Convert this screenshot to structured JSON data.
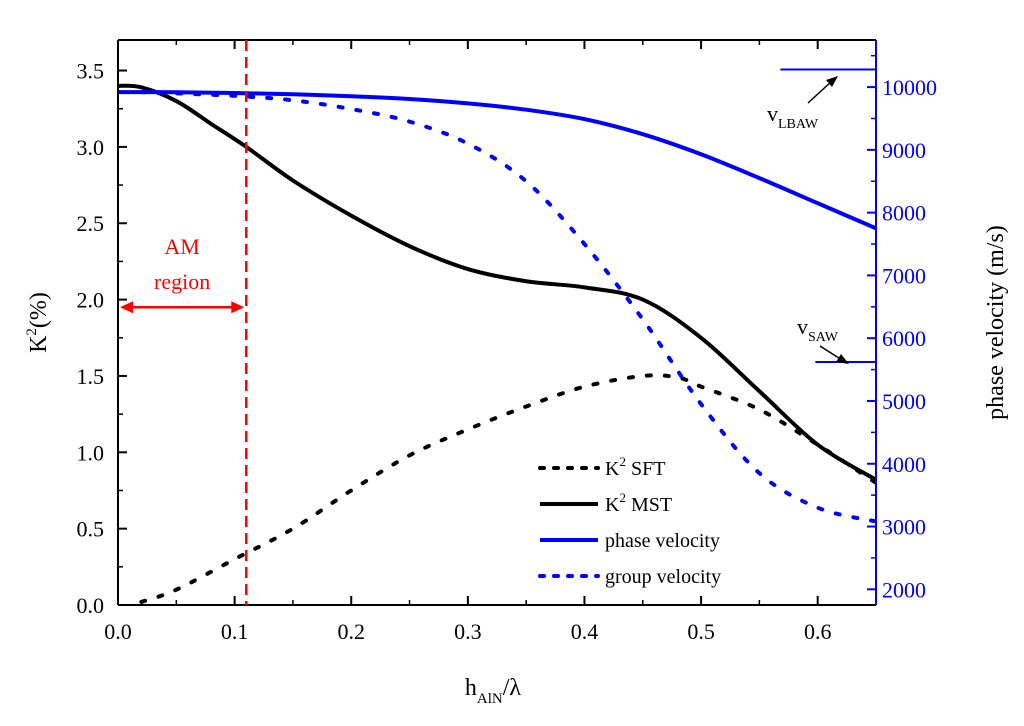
{
  "chart_data": {
    "type": "line",
    "x_axis": {
      "label_main": "h",
      "label_sub": "AlN",
      "label_tail": "/λ",
      "range": [
        0.0,
        0.65
      ],
      "ticks": [
        0.0,
        0.1,
        0.2,
        0.3,
        0.4,
        0.5,
        0.6
      ],
      "tick_labels": [
        "0.0",
        "0.1",
        "0.2",
        "0.3",
        "0.4",
        "0.5",
        "0.6"
      ]
    },
    "y_left": {
      "label_main": "K",
      "label_sup": "2",
      "label_tail": "(%)",
      "range": [
        0.0,
        3.7
      ],
      "ticks": [
        0.0,
        0.5,
        1.0,
        1.5,
        2.0,
        2.5,
        3.0,
        3.5
      ],
      "tick_labels": [
        "0.0",
        "0.5",
        "1.0",
        "1.5",
        "2.0",
        "2.5",
        "3.0",
        "3.5"
      ],
      "color": "#000000"
    },
    "y_right": {
      "label": "phase velocity (m/s)",
      "range": [
        1750,
        10750
      ],
      "ticks": [
        2000,
        3000,
        4000,
        5000,
        6000,
        7000,
        8000,
        9000,
        10000
      ],
      "tick_labels": [
        "2000",
        "3000",
        "4000",
        "5000",
        "6000",
        "7000",
        "8000",
        "9000",
        "10000"
      ],
      "color": "#0000ff"
    },
    "series": [
      {
        "name": "K2 SFT",
        "legend_main": "K",
        "legend_sup": "2",
        "legend_tail": " SFT",
        "axis": "left",
        "color": "#000000",
        "style": "dotted",
        "x": [
          0.02,
          0.05,
          0.1,
          0.15,
          0.2,
          0.25,
          0.3,
          0.35,
          0.4,
          0.45,
          0.48,
          0.5,
          0.55,
          0.6,
          0.65
        ],
        "y": [
          0.02,
          0.1,
          0.3,
          0.5,
          0.75,
          0.98,
          1.15,
          1.3,
          1.43,
          1.5,
          1.49,
          1.43,
          1.28,
          1.05,
          0.8
        ]
      },
      {
        "name": "K2 MST",
        "legend_main": "K",
        "legend_sup": "2",
        "legend_tail": " MST",
        "axis": "left",
        "color": "#000000",
        "style": "solid",
        "x": [
          0.0,
          0.02,
          0.05,
          0.08,
          0.11,
          0.15,
          0.2,
          0.25,
          0.3,
          0.35,
          0.4,
          0.45,
          0.5,
          0.55,
          0.6,
          0.65
        ],
        "y": [
          3.4,
          3.39,
          3.3,
          3.15,
          3.0,
          2.78,
          2.55,
          2.35,
          2.2,
          2.12,
          2.08,
          2.0,
          1.75,
          1.4,
          1.05,
          0.82
        ]
      },
      {
        "name": "phase velocity",
        "legend_main": "phase velocity",
        "axis": "right",
        "color": "#0000ff",
        "style": "solid",
        "x": [
          0.0,
          0.05,
          0.1,
          0.15,
          0.2,
          0.25,
          0.3,
          0.35,
          0.4,
          0.45,
          0.5,
          0.55,
          0.6,
          0.65
        ],
        "y": [
          9920,
          9918,
          9905,
          9885,
          9855,
          9810,
          9740,
          9640,
          9490,
          9250,
          8930,
          8550,
          8150,
          7750
        ]
      },
      {
        "name": "group velocity",
        "legend_main": "group velocity",
        "axis": "right",
        "color": "#0000ff",
        "style": "dotted",
        "x": [
          0.02,
          0.05,
          0.1,
          0.15,
          0.2,
          0.25,
          0.3,
          0.35,
          0.4,
          0.45,
          0.5,
          0.55,
          0.6,
          0.65
        ],
        "y": [
          9920,
          9900,
          9860,
          9790,
          9650,
          9450,
          9100,
          8500,
          7500,
          6300,
          4950,
          3850,
          3300,
          3080
        ]
      }
    ],
    "marker_line": {
      "x": 0.11,
      "color": "#ff0000",
      "style": "dashed"
    },
    "region": {
      "label_line1": "AM",
      "label_line2": "region",
      "x_from": 0.0,
      "x_to": 0.11,
      "y": 1.95,
      "color": "#ff0000"
    },
    "reference_lines": [
      {
        "name": "v_LBAW",
        "label_main": "v",
        "label_sub": "LBAW",
        "value": 10280,
        "x_from": 0.568,
        "x_to": 0.65
      },
      {
        "name": "v_SAW",
        "label_main": "v",
        "label_sub": "SAW",
        "value": 5620,
        "x_from": 0.598,
        "x_to": 0.65
      }
    ],
    "legend_position": "bottom-right"
  }
}
